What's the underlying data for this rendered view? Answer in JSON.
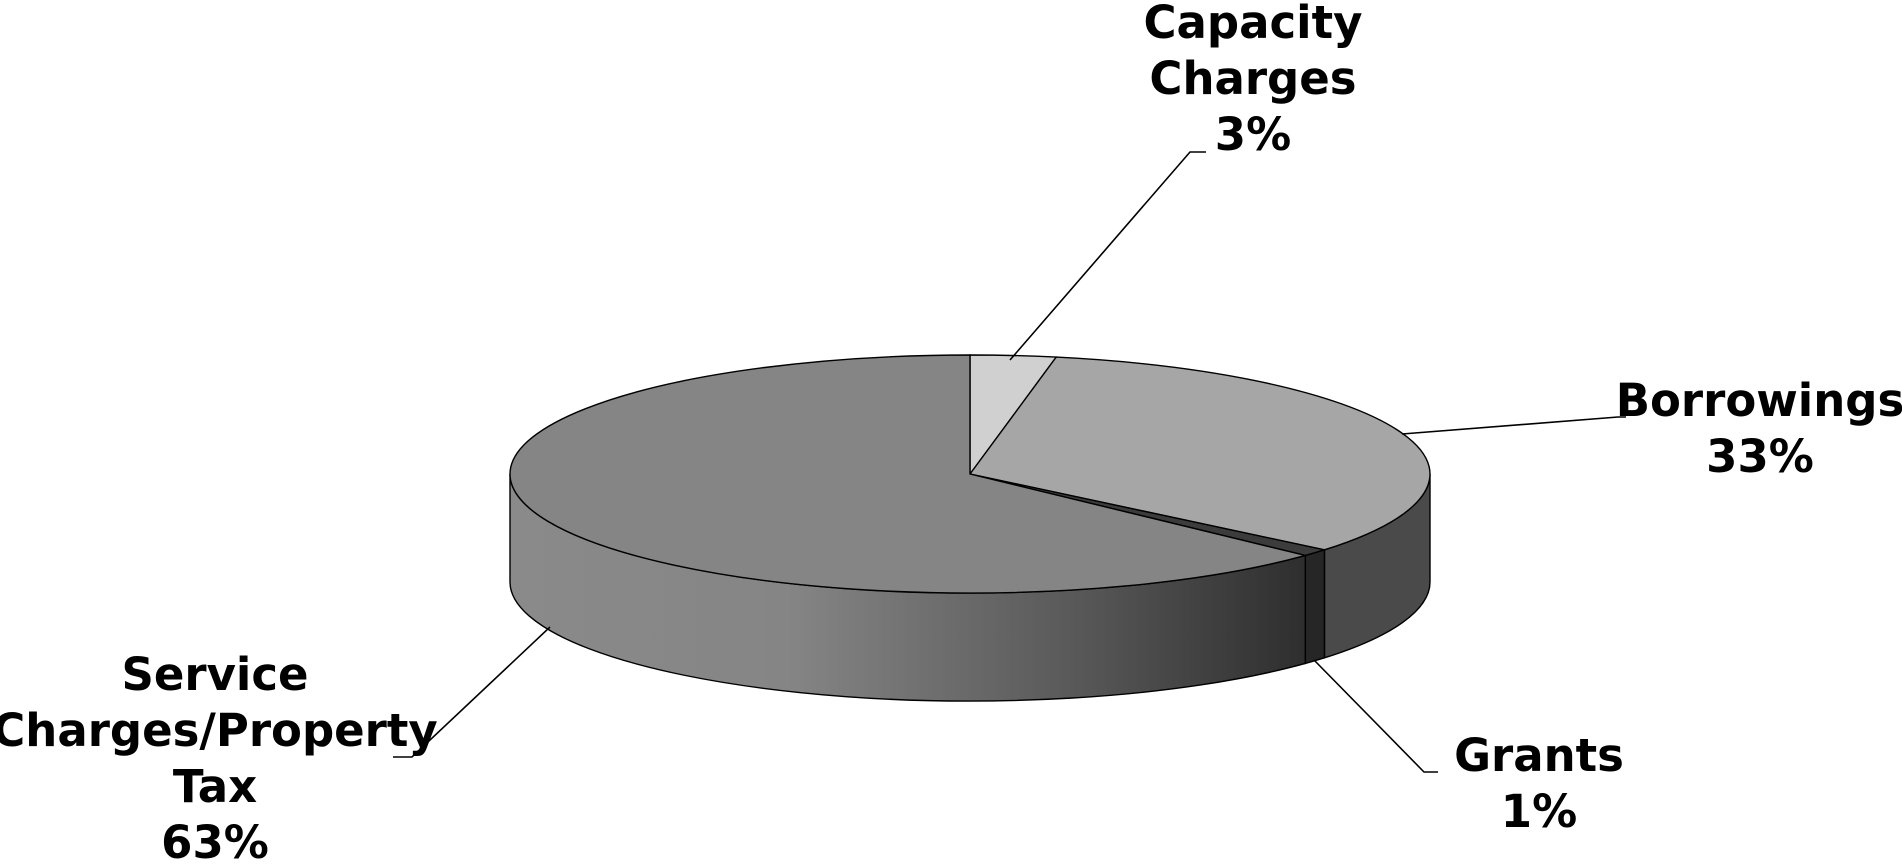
{
  "chart_data": {
    "type": "pie",
    "variant": "3d",
    "title": "",
    "start_angle_deg": 90,
    "direction": "clockwise",
    "series": [
      {
        "name": "",
        "values": [
          3,
          33,
          1,
          63
        ]
      }
    ],
    "categories": [
      "Capacity Charges",
      "Borrowings",
      "Grants",
      "Service Charges/Property Tax"
    ],
    "slices": [
      {
        "label_lines": [
          "Capacity",
          "Charges"
        ],
        "percent_label": "3%",
        "value": 3,
        "color": "#d0d0d0"
      },
      {
        "label_lines": [
          "Borrowings"
        ],
        "percent_label": "33%",
        "value": 33,
        "color": "#a6a6a6"
      },
      {
        "label_lines": [
          "Grants"
        ],
        "percent_label": "1%",
        "value": 1,
        "color": "#3c3c3c"
      },
      {
        "label_lines": [
          "Service",
          "Charges/Property",
          "Tax"
        ],
        "percent_label": "63%",
        "value": 63,
        "color": "#858585"
      }
    ],
    "legend": "none",
    "data_labels": "outside-with-leader-lines"
  }
}
